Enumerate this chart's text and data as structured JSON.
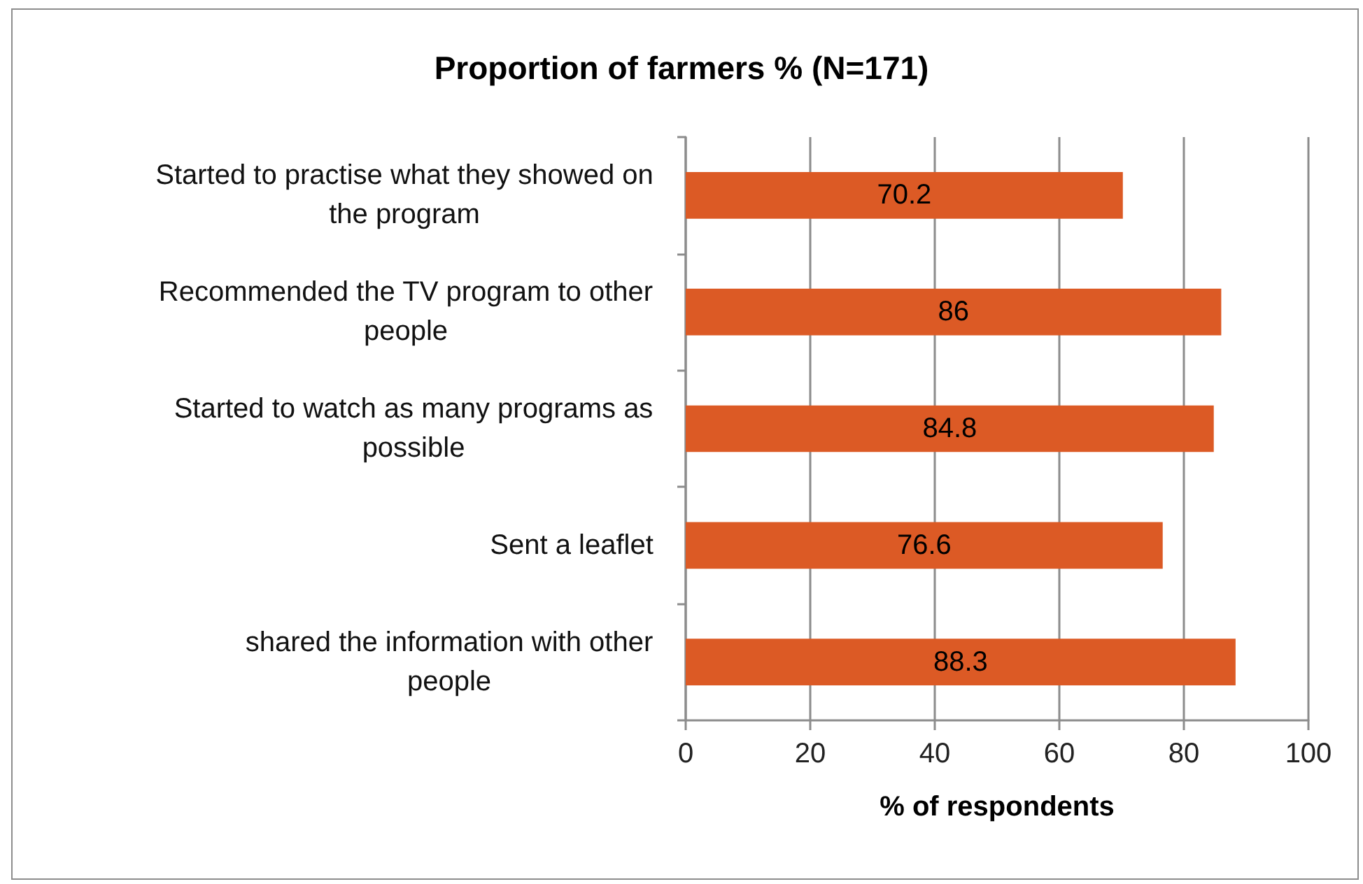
{
  "chart_data": {
    "type": "bar",
    "orientation": "horizontal",
    "title": "Proportion of farmers % (N=171)",
    "xlabel": "% of respondents",
    "categories": [
      "Started to practise what they showed on the program",
      "Recommended the TV program to other people",
      "Started to watch as many programs as possible",
      "Sent a leaflet",
      "shared the information with other people"
    ],
    "values": [
      70.2,
      86,
      84.8,
      76.6,
      88.3
    ],
    "color": "#dc5a25",
    "xlim": [
      0,
      100
    ],
    "xticks": [
      0,
      20,
      40,
      60,
      80,
      100
    ],
    "grid": "x",
    "data_labels": true
  }
}
